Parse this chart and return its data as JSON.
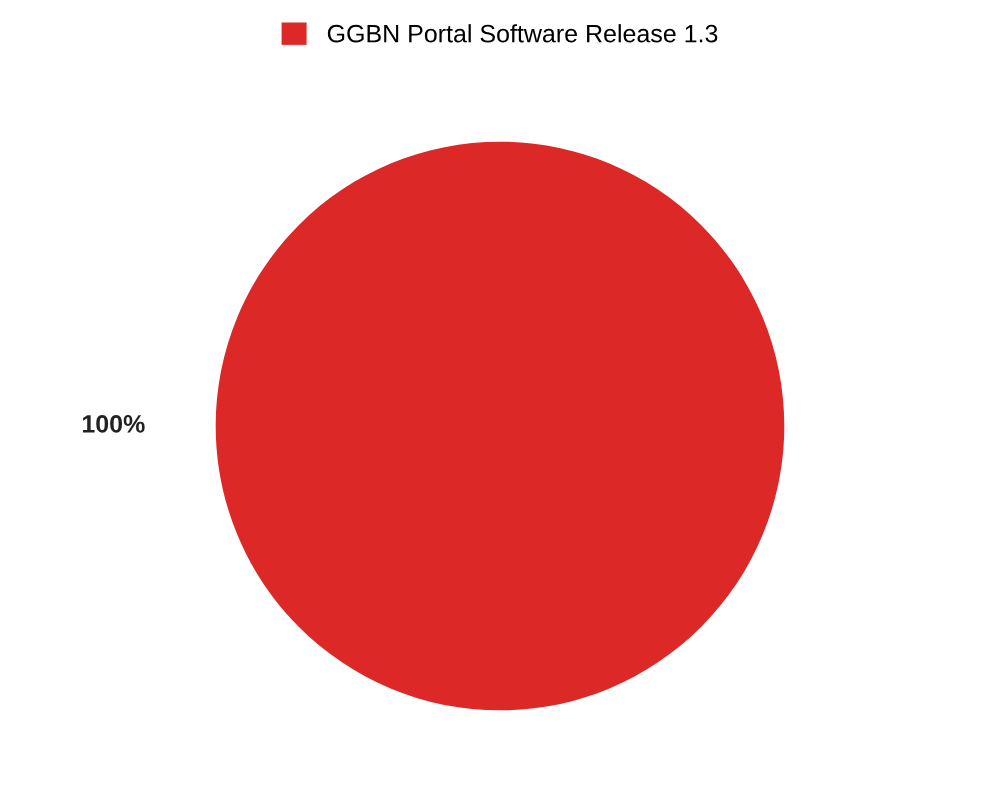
{
  "chart_data": {
    "type": "pie",
    "categories": [
      "GGBN Portal Software Release 1.3"
    ],
    "values": [
      100
    ],
    "value_labels": [
      "100%"
    ],
    "colors": [
      "#dc2826"
    ],
    "legend": "top"
  }
}
